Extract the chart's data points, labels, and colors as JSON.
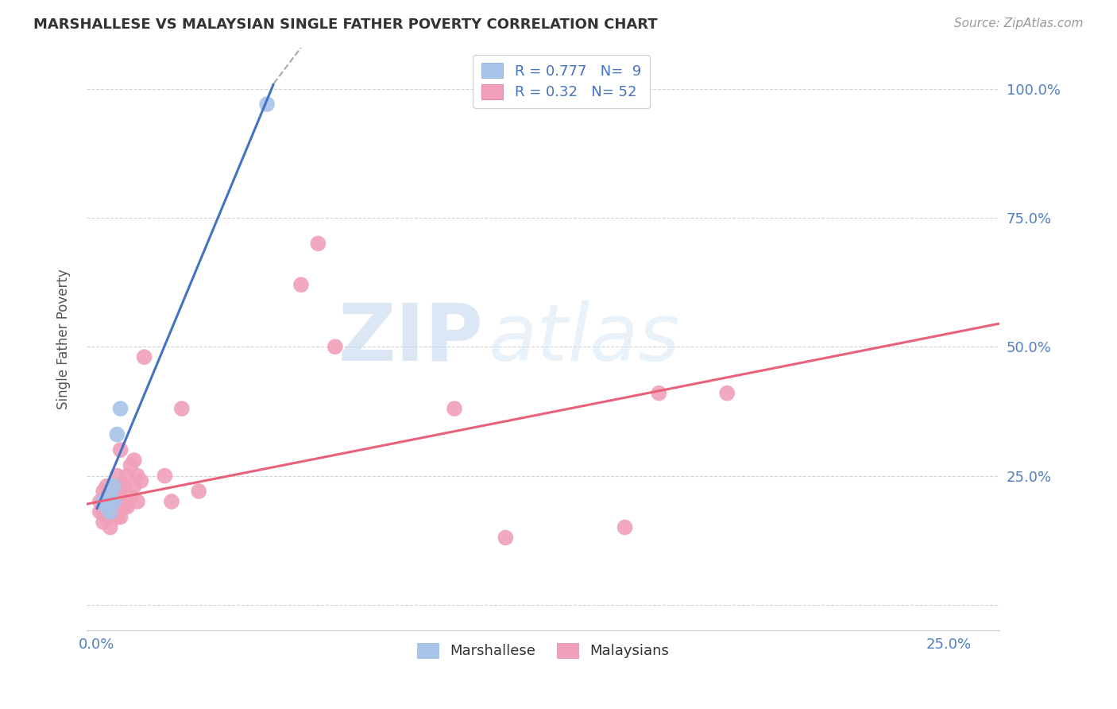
{
  "title": "MARSHALLESE VS MALAYSIAN SINGLE FATHER POVERTY CORRELATION CHART",
  "source": "Source: ZipAtlas.com",
  "ylabel_label": "Single Father Poverty",
  "xlim": [
    -0.003,
    0.265
  ],
  "ylim": [
    -0.05,
    1.08
  ],
  "x_ticks": [
    0.0,
    0.05,
    0.1,
    0.15,
    0.2,
    0.25
  ],
  "x_tick_labels": [
    "0.0%",
    "",
    "",
    "",
    "",
    "25.0%"
  ],
  "y_ticks": [
    0.0,
    0.25,
    0.5,
    0.75,
    1.0
  ],
  "y_tick_labels": [
    "",
    "25.0%",
    "50.0%",
    "75.0%",
    "100.0%"
  ],
  "marshallese_R": 0.777,
  "marshallese_N": 9,
  "malaysian_R": 0.32,
  "malaysian_N": 52,
  "marshallese_color": "#a8c4e8",
  "malaysian_color": "#f0a0b8",
  "marshallese_line_color": "#4472c4",
  "malaysian_line_color": "#e8607a",
  "watermark_zip": "ZIP",
  "watermark_atlas": "atlas",
  "marshallese_x": [
    0.002,
    0.003,
    0.004,
    0.004,
    0.005,
    0.005,
    0.006,
    0.007,
    0.05
  ],
  "marshallese_y": [
    0.2,
    0.19,
    0.21,
    0.18,
    0.23,
    0.2,
    0.33,
    0.38,
    0.97
  ],
  "malaysian_x": [
    0.001,
    0.001,
    0.002,
    0.002,
    0.002,
    0.002,
    0.003,
    0.003,
    0.003,
    0.003,
    0.004,
    0.004,
    0.004,
    0.004,
    0.005,
    0.005,
    0.005,
    0.005,
    0.006,
    0.006,
    0.006,
    0.006,
    0.006,
    0.007,
    0.007,
    0.007,
    0.007,
    0.007,
    0.008,
    0.008,
    0.009,
    0.009,
    0.01,
    0.01,
    0.011,
    0.011,
    0.012,
    0.012,
    0.013,
    0.014,
    0.02,
    0.022,
    0.025,
    0.03,
    0.06,
    0.065,
    0.07,
    0.105,
    0.12,
    0.155,
    0.165,
    0.185
  ],
  "malaysian_y": [
    0.18,
    0.2,
    0.16,
    0.18,
    0.2,
    0.22,
    0.17,
    0.19,
    0.21,
    0.23,
    0.15,
    0.17,
    0.2,
    0.22,
    0.17,
    0.19,
    0.21,
    0.23,
    0.17,
    0.19,
    0.21,
    0.23,
    0.25,
    0.17,
    0.19,
    0.21,
    0.23,
    0.3,
    0.19,
    0.23,
    0.19,
    0.25,
    0.21,
    0.27,
    0.23,
    0.28,
    0.2,
    0.25,
    0.24,
    0.48,
    0.25,
    0.2,
    0.38,
    0.22,
    0.62,
    0.7,
    0.5,
    0.38,
    0.13,
    0.15,
    0.41,
    0.41
  ],
  "marsh_line_x0": 0.0,
  "marsh_line_y0": 0.185,
  "marsh_line_x1": 0.052,
  "marsh_line_y1": 1.01,
  "marsh_line_dash_x0": 0.052,
  "marsh_line_dash_y0": 1.01,
  "marsh_line_dash_x1": 0.06,
  "marsh_line_dash_y1": 1.08,
  "malay_line_x0": -0.003,
  "malay_line_y0": 0.195,
  "malay_line_x1": 0.265,
  "malay_line_y1": 0.545
}
